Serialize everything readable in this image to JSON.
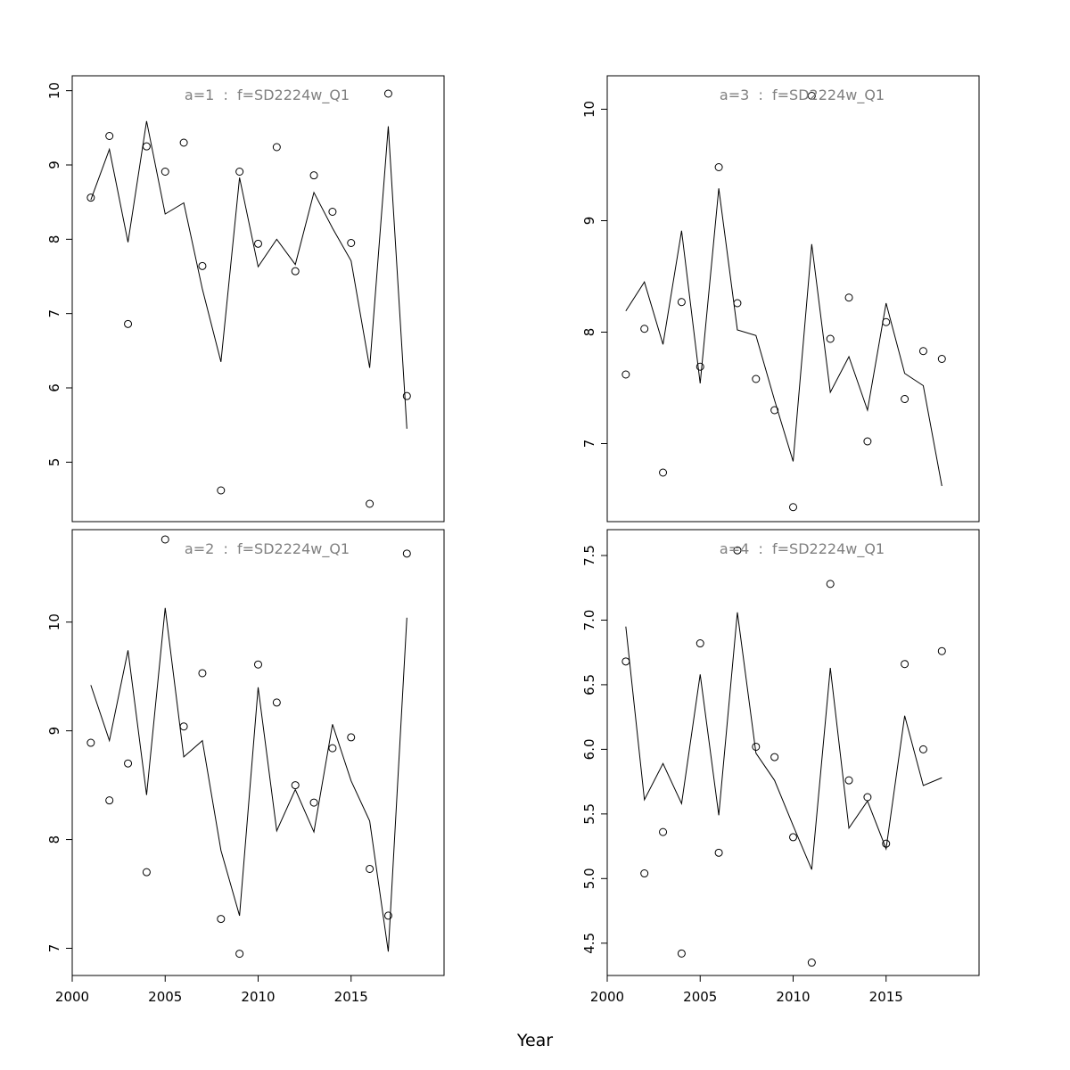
{
  "figure": {
    "xlabel": "Year"
  },
  "chart_data": [
    {
      "type": "line",
      "title": "a=1  :  f=SD2224w_Q1",
      "x": [
        2001,
        2002,
        2003,
        2004,
        2005,
        2006,
        2007,
        2008,
        2009,
        2010,
        2011,
        2012,
        2013,
        2014,
        2015,
        2016,
        2017,
        2018
      ],
      "series": [
        {
          "kind": "observed",
          "values": [
            8.56,
            9.39,
            6.86,
            9.25,
            8.91,
            9.3,
            7.64,
            4.62,
            8.91,
            7.94,
            9.24,
            7.57,
            8.86,
            8.37,
            7.95,
            4.44,
            9.96,
            5.89
          ]
        },
        {
          "kind": "fitted",
          "values": [
            8.53,
            9.21,
            7.96,
            9.59,
            8.34,
            8.49,
            7.33,
            6.35,
            8.83,
            7.63,
            8.0,
            7.66,
            8.63,
            8.15,
            7.71,
            6.27,
            9.52,
            5.45
          ]
        }
      ],
      "xlim": [
        2000,
        2020
      ],
      "ylim": [
        4.2,
        10.2
      ],
      "xticks": [
        "2000",
        "2005",
        "2010",
        "2015"
      ],
      "yticks": [
        "5",
        "6",
        "7",
        "8",
        "9",
        "10"
      ],
      "show_xaxis": false,
      "grid": false
    },
    {
      "type": "line",
      "title": "a=3  :  f=SD2224w_Q1",
      "x": [
        2001,
        2002,
        2003,
        2004,
        2005,
        2006,
        2007,
        2008,
        2009,
        2010,
        2011,
        2012,
        2013,
        2014,
        2015,
        2016,
        2017,
        2018
      ],
      "series": [
        {
          "kind": "observed",
          "values": [
            7.62,
            8.03,
            6.74,
            8.27,
            7.69,
            9.48,
            8.26,
            7.58,
            7.3,
            6.43,
            10.12,
            7.94,
            8.31,
            7.02,
            8.09,
            7.4,
            7.83,
            7.76
          ]
        },
        {
          "kind": "fitted",
          "values": [
            8.19,
            8.45,
            7.89,
            8.91,
            7.54,
            9.29,
            8.02,
            7.97,
            7.39,
            6.84,
            8.79,
            7.46,
            7.78,
            7.3,
            8.26,
            7.63,
            7.52,
            6.62
          ]
        }
      ],
      "xlim": [
        2000,
        2020
      ],
      "ylim": [
        6.3,
        10.3
      ],
      "xticks": [
        "2000",
        "2005",
        "2010",
        "2015"
      ],
      "yticks": [
        "7",
        "8",
        "9",
        "10"
      ],
      "show_xaxis": false,
      "grid": false
    },
    {
      "type": "line",
      "title": "a=2  :  f=SD2224w_Q1",
      "x": [
        2001,
        2002,
        2003,
        2004,
        2005,
        2006,
        2007,
        2008,
        2009,
        2010,
        2011,
        2012,
        2013,
        2014,
        2015,
        2016,
        2017,
        2018
      ],
      "series": [
        {
          "kind": "observed",
          "values": [
            8.89,
            8.36,
            8.7,
            7.7,
            10.76,
            9.04,
            9.53,
            7.27,
            6.95,
            9.61,
            9.26,
            8.5,
            8.34,
            8.84,
            8.94,
            7.73,
            7.3,
            10.63
          ]
        },
        {
          "kind": "fitted",
          "values": [
            9.42,
            8.91,
            9.74,
            8.41,
            10.13,
            8.76,
            8.91,
            7.9,
            7.3,
            9.4,
            8.08,
            8.46,
            8.07,
            9.06,
            8.54,
            8.17,
            6.97,
            10.04
          ]
        }
      ],
      "xlim": [
        2000,
        2020
      ],
      "ylim": [
        6.75,
        10.85
      ],
      "xticks": [
        "2000",
        "2005",
        "2010",
        "2015"
      ],
      "yticks": [
        "7",
        "8",
        "9",
        "10"
      ],
      "show_xaxis": true,
      "grid": false
    },
    {
      "type": "line",
      "title": "a=4  :  f=SD2224w_Q1",
      "x": [
        2001,
        2002,
        2003,
        2004,
        2005,
        2006,
        2007,
        2008,
        2009,
        2010,
        2011,
        2012,
        2013,
        2014,
        2015,
        2016,
        2017,
        2018
      ],
      "series": [
        {
          "kind": "observed",
          "values": [
            6.68,
            5.04,
            5.36,
            4.42,
            6.82,
            5.2,
            7.54,
            6.02,
            5.94,
            5.32,
            4.35,
            7.28,
            5.76,
            5.63,
            5.27,
            6.66,
            6.0,
            6.76
          ]
        },
        {
          "kind": "fitted",
          "values": [
            6.95,
            5.61,
            5.89,
            5.58,
            6.58,
            5.49,
            7.06,
            5.97,
            5.76,
            5.41,
            5.07,
            6.63,
            5.39,
            5.6,
            5.23,
            6.26,
            5.72,
            5.78
          ]
        }
      ],
      "xlim": [
        2000,
        2020
      ],
      "ylim": [
        4.25,
        7.7
      ],
      "xticks": [
        "2000",
        "2005",
        "2010",
        "2015"
      ],
      "yticks": [
        "4.5",
        "5.0",
        "5.5",
        "6.0",
        "6.5",
        "7.0",
        "7.5"
      ],
      "show_xaxis": true,
      "grid": false
    }
  ]
}
